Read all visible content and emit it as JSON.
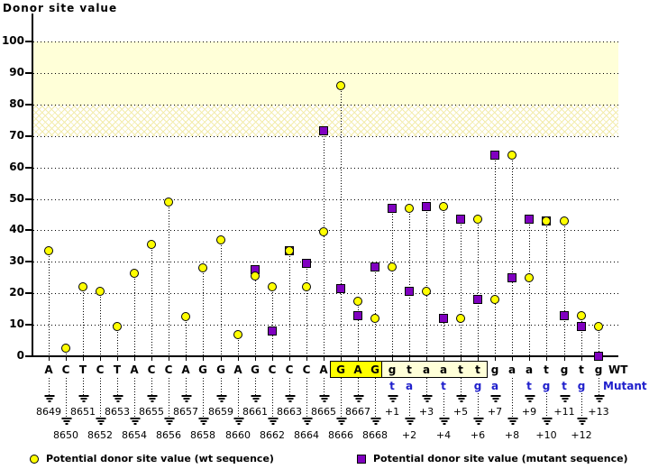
{
  "title": "Donor site value",
  "right_labels": {
    "wt": "WT",
    "mutant": "Mutant"
  },
  "legend": {
    "wt": "Potential donor site value (wt sequence)",
    "mutant": "Potential donor site value (mutant sequence)"
  },
  "colors": {
    "wt_marker": "#ffff00",
    "mutant_marker": "#8000c0",
    "mutant_text": "#2020cc",
    "band_solid": "#ffffd8",
    "gag_highlight": "#ffff00",
    "intron_box_fill": "#ffffd8"
  },
  "chart_data": {
    "type": "scatter",
    "title": "Donor site value",
    "ylabel": "Donor site value",
    "ylim": [
      0,
      100
    ],
    "y_ticks": [
      0,
      10,
      20,
      30,
      40,
      50,
      60,
      70,
      80,
      90,
      100
    ],
    "grid": true,
    "legend_position": "bottom",
    "bands": [
      {
        "from": 80,
        "to": 100,
        "style": "solid"
      },
      {
        "from": 70,
        "to": 80,
        "style": "crosshatch"
      }
    ],
    "series_names": {
      "wt": "Potential donor site value (wt sequence)",
      "mutant": "Potential donor site value (mutant sequence)"
    },
    "highlight_regions": {
      "gag": [
        "8666",
        "8667",
        "8668"
      ],
      "box": [
        "+1",
        "+2",
        "+3",
        "+4",
        "+5",
        "+6"
      ]
    },
    "positions": [
      {
        "label": "8649",
        "base": "A",
        "mut_base": null,
        "wt": 33.5,
        "mutant": null,
        "highlight": null
      },
      {
        "label": "8650",
        "base": "C",
        "mut_base": null,
        "wt": 2.5,
        "mutant": null,
        "highlight": null
      },
      {
        "label": "8651",
        "base": "T",
        "mut_base": null,
        "wt": 22,
        "mutant": null,
        "highlight": null
      },
      {
        "label": "8652",
        "base": "C",
        "mut_base": null,
        "wt": 20.5,
        "mutant": null,
        "highlight": null
      },
      {
        "label": "8653",
        "base": "T",
        "mut_base": null,
        "wt": 9.5,
        "mutant": null,
        "highlight": null
      },
      {
        "label": "8654",
        "base": "A",
        "mut_base": null,
        "wt": 26.5,
        "mutant": null,
        "highlight": null
      },
      {
        "label": "8655",
        "base": "C",
        "mut_base": null,
        "wt": 35.5,
        "mutant": null,
        "highlight": null
      },
      {
        "label": "8656",
        "base": "C",
        "mut_base": null,
        "wt": 49,
        "mutant": null,
        "highlight": null
      },
      {
        "label": "8657",
        "base": "A",
        "mut_base": null,
        "wt": 12.5,
        "mutant": null,
        "highlight": null
      },
      {
        "label": "8658",
        "base": "G",
        "mut_base": null,
        "wt": 28,
        "mutant": null,
        "highlight": null
      },
      {
        "label": "8659",
        "base": "G",
        "mut_base": null,
        "wt": 37,
        "mutant": null,
        "highlight": null
      },
      {
        "label": "8660",
        "base": "A",
        "mut_base": null,
        "wt": 7,
        "mutant": null,
        "highlight": null
      },
      {
        "label": "8661",
        "base": "G",
        "mut_base": null,
        "wt": 25.5,
        "mutant": 27.5,
        "highlight": null
      },
      {
        "label": "8662",
        "base": "C",
        "mut_base": null,
        "wt": 22,
        "mutant": 8,
        "highlight": null
      },
      {
        "label": "8663",
        "base": "C",
        "mut_base": null,
        "wt": 33.5,
        "mutant": 33.5,
        "highlight": null
      },
      {
        "label": "8664",
        "base": "C",
        "mut_base": null,
        "wt": 22,
        "mutant": 29.5,
        "highlight": null
      },
      {
        "label": "8665",
        "base": "A",
        "mut_base": null,
        "wt": 39.5,
        "mutant": 71.5,
        "highlight": null
      },
      {
        "label": "8666",
        "base": "G",
        "mut_base": null,
        "wt": 86,
        "mutant": 21.5,
        "highlight": "gag"
      },
      {
        "label": "8667",
        "base": "A",
        "mut_base": null,
        "wt": 17.5,
        "mutant": 13,
        "highlight": "gag"
      },
      {
        "label": "8668",
        "base": "G",
        "mut_base": null,
        "wt": 12,
        "mutant": 28.5,
        "highlight": "gag"
      },
      {
        "label": "+1",
        "base": "g",
        "mut_base": "t",
        "wt": 28.5,
        "mutant": 47,
        "highlight": "box"
      },
      {
        "label": "+2",
        "base": "t",
        "mut_base": "a",
        "wt": 47,
        "mutant": 20.5,
        "highlight": "box"
      },
      {
        "label": "+3",
        "base": "a",
        "mut_base": null,
        "wt": 20.5,
        "mutant": 47.5,
        "highlight": "box"
      },
      {
        "label": "+4",
        "base": "a",
        "mut_base": "t",
        "wt": 47.5,
        "mutant": 12,
        "highlight": "box"
      },
      {
        "label": "+5",
        "base": "t",
        "mut_base": null,
        "wt": 12,
        "mutant": 43.5,
        "highlight": "box"
      },
      {
        "label": "+6",
        "base": "t",
        "mut_base": "g",
        "wt": 43.5,
        "mutant": 18,
        "highlight": "box"
      },
      {
        "label": "+7",
        "base": "g",
        "mut_base": "a",
        "wt": 18,
        "mutant": 64,
        "highlight": null
      },
      {
        "label": "+8",
        "base": "a",
        "mut_base": null,
        "wt": 64,
        "mutant": 25,
        "highlight": null
      },
      {
        "label": "+9",
        "base": "a",
        "mut_base": "t",
        "wt": 25,
        "mutant": 43.5,
        "highlight": null
      },
      {
        "label": "+10",
        "base": "t",
        "mut_base": "g",
        "wt": 43,
        "mutant": 43,
        "highlight": null
      },
      {
        "label": "+11",
        "base": "g",
        "mut_base": "t",
        "wt": 43,
        "mutant": 13,
        "highlight": null
      },
      {
        "label": "+12",
        "base": "t",
        "mut_base": "g",
        "wt": 13,
        "mutant": 9.5,
        "highlight": null
      },
      {
        "label": "+13",
        "base": "g",
        "mut_base": null,
        "wt": 9.5,
        "mutant": 0,
        "highlight": null
      }
    ]
  }
}
